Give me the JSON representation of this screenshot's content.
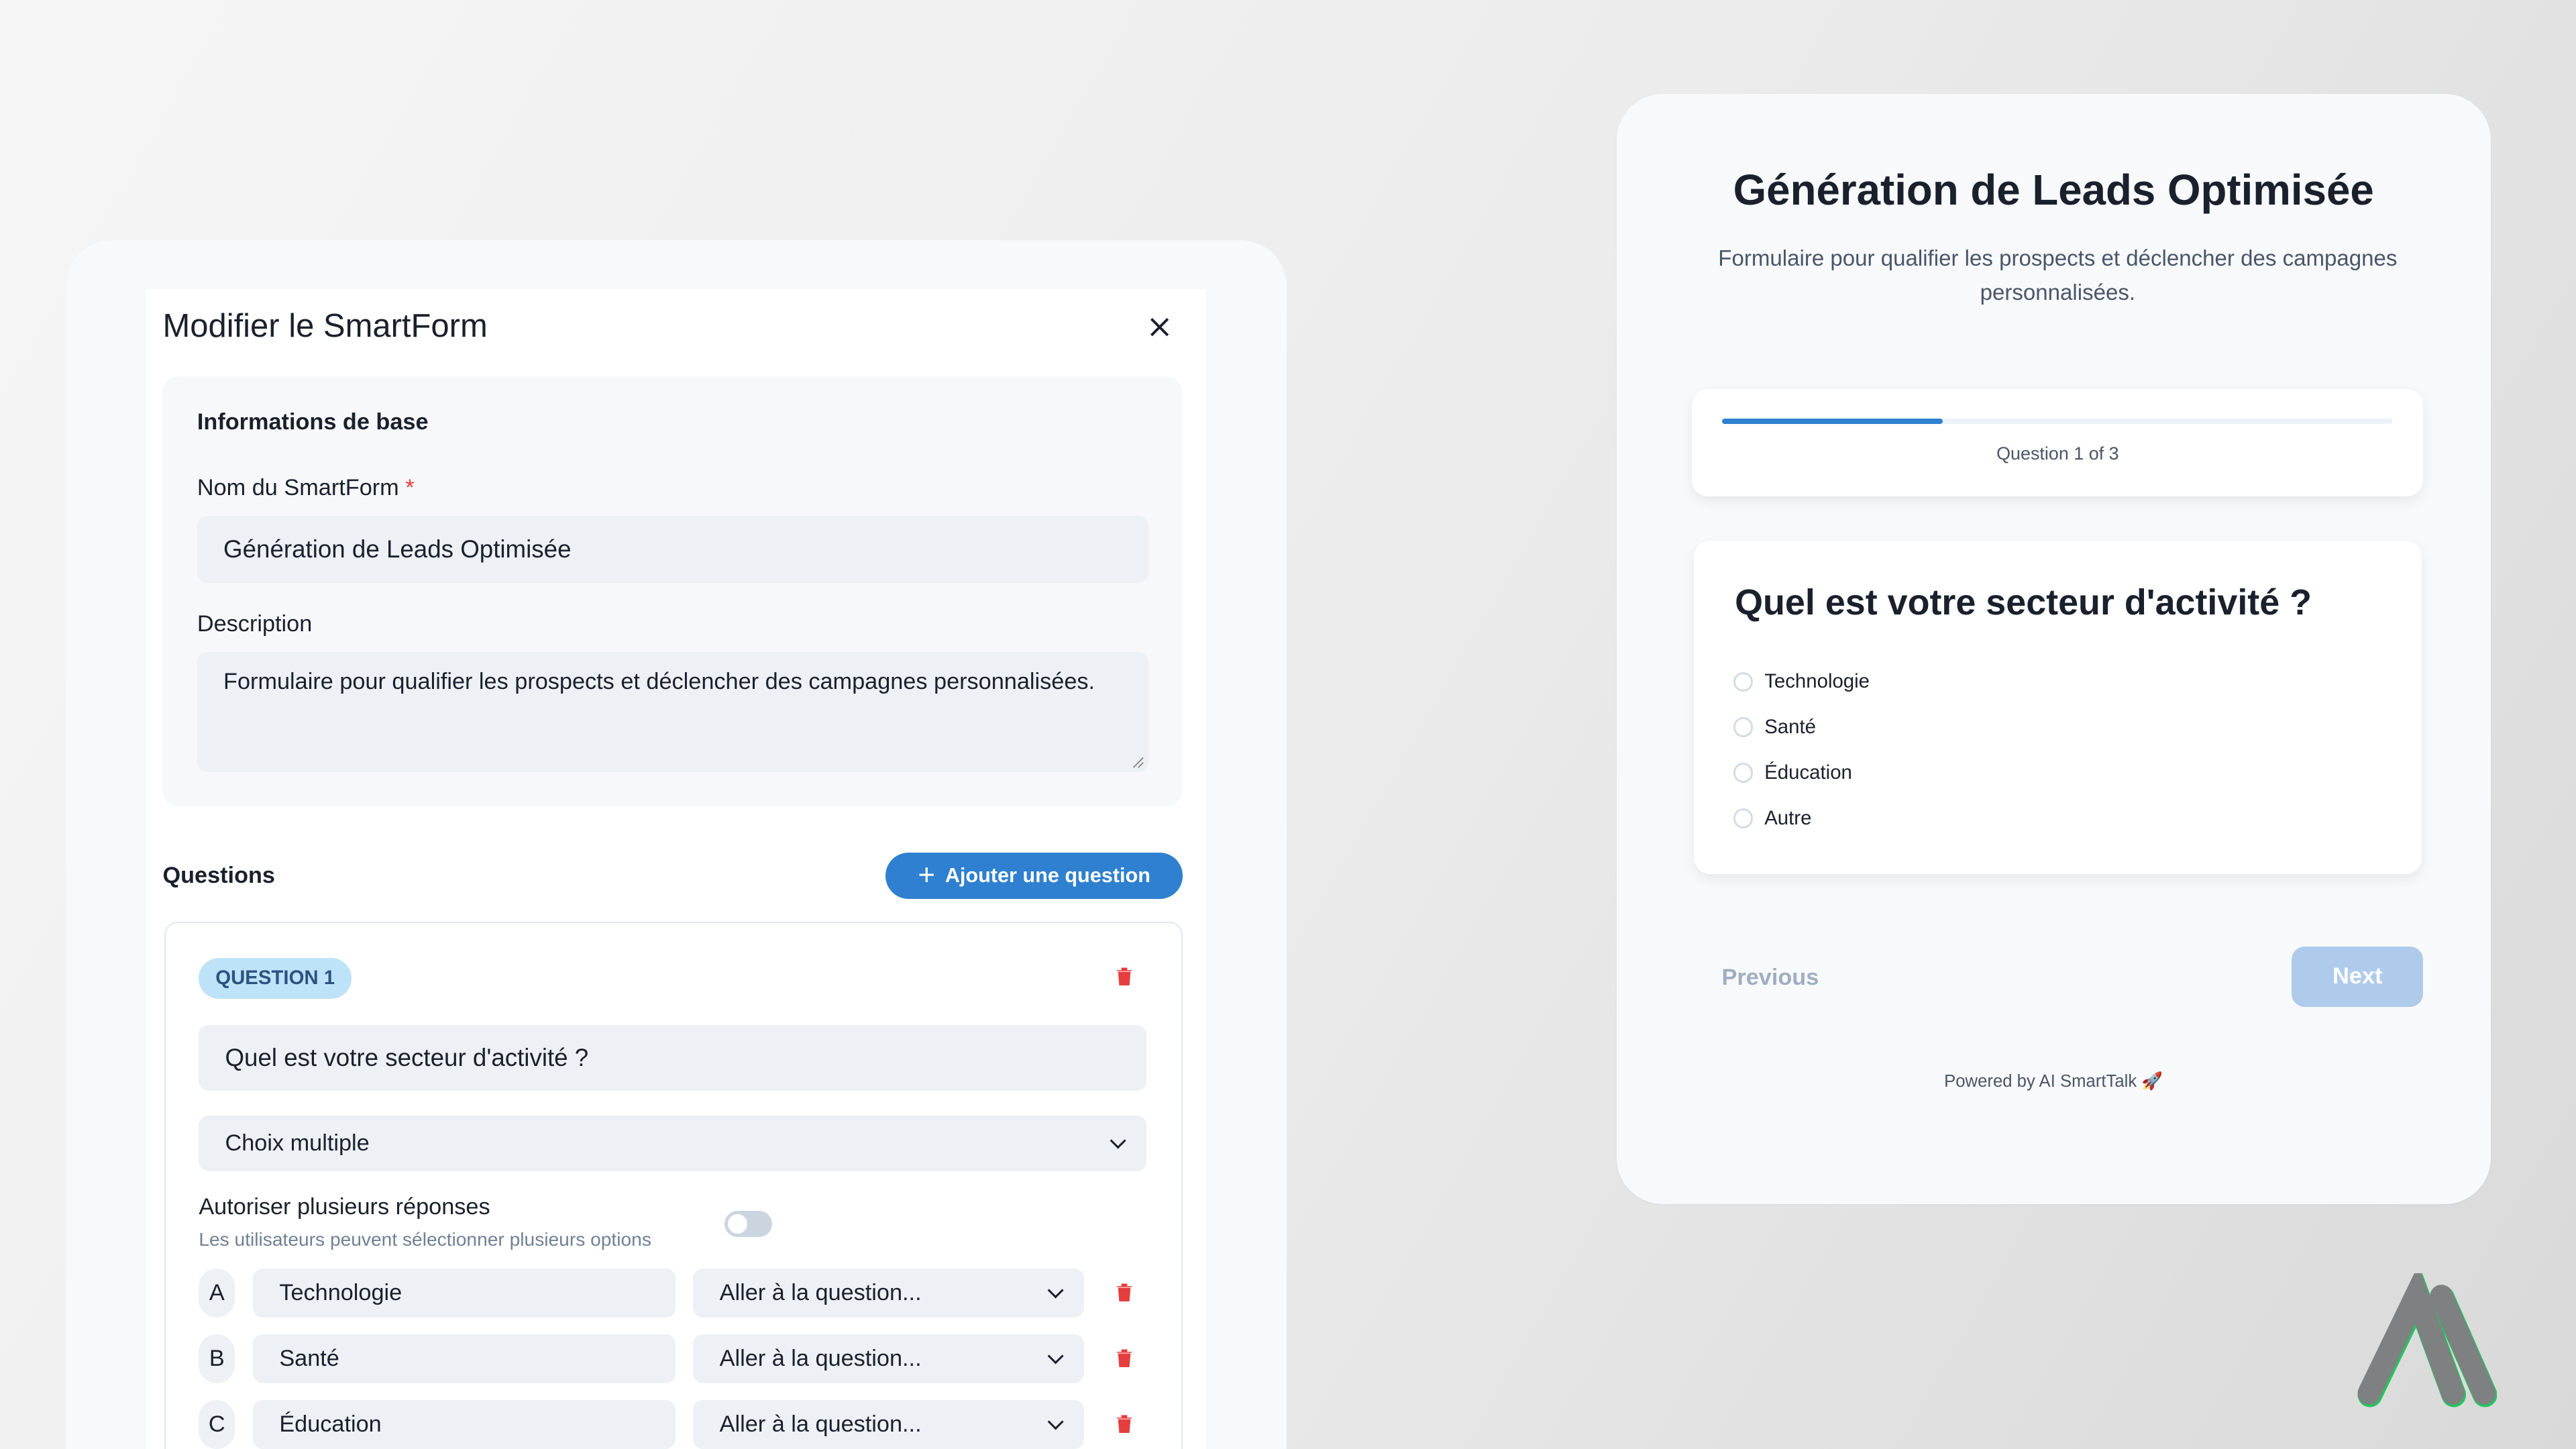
{
  "editor": {
    "title": "Modifier le SmartForm",
    "basic_info": {
      "heading": "Informations de base",
      "name_label": "Nom du SmartForm",
      "required_mark": "*",
      "name_value": "Génération de Leads Optimisée",
      "description_label": "Description",
      "description_value": "Formulaire pour qualifier les prospects et déclencher des campagnes personnalisées."
    },
    "questions_heading": "Questions",
    "add_question_label": "Ajouter une question",
    "question": {
      "badge": "QUESTION 1",
      "text": "Quel est votre secteur d'activité ?",
      "type": "Choix multiple",
      "multi_label": "Autoriser plusieurs réponses",
      "multi_hint": "Les utilisateurs peuvent sélectionner plusieurs options",
      "multi_enabled": false,
      "options": [
        {
          "letter": "A",
          "value": "Technologie",
          "goto": "Aller à la question..."
        },
        {
          "letter": "B",
          "value": "Santé",
          "goto": "Aller à la question..."
        },
        {
          "letter": "C",
          "value": "Éducation",
          "goto": "Aller à la question..."
        }
      ]
    }
  },
  "preview": {
    "title": "Génération de Leads Optimisée",
    "description": "Formulaire pour qualifier les prospects et déclencher des campagnes personnalisées.",
    "progress_percent": 33,
    "progress_text": "Question 1 of 3",
    "question": "Quel est votre secteur d'activité ?",
    "options": [
      "Technologie",
      "Santé",
      "Éducation",
      "Autre"
    ],
    "previous_label": "Previous",
    "next_label": "Next",
    "footer": "Powered by AI SmartTalk 🚀"
  },
  "colors": {
    "accent": "#2f80d0",
    "danger": "#e53e3e",
    "badge_bg": "#bee3f8",
    "next_disabled": "#aecbeb",
    "logo_accent": "#22c55e"
  }
}
